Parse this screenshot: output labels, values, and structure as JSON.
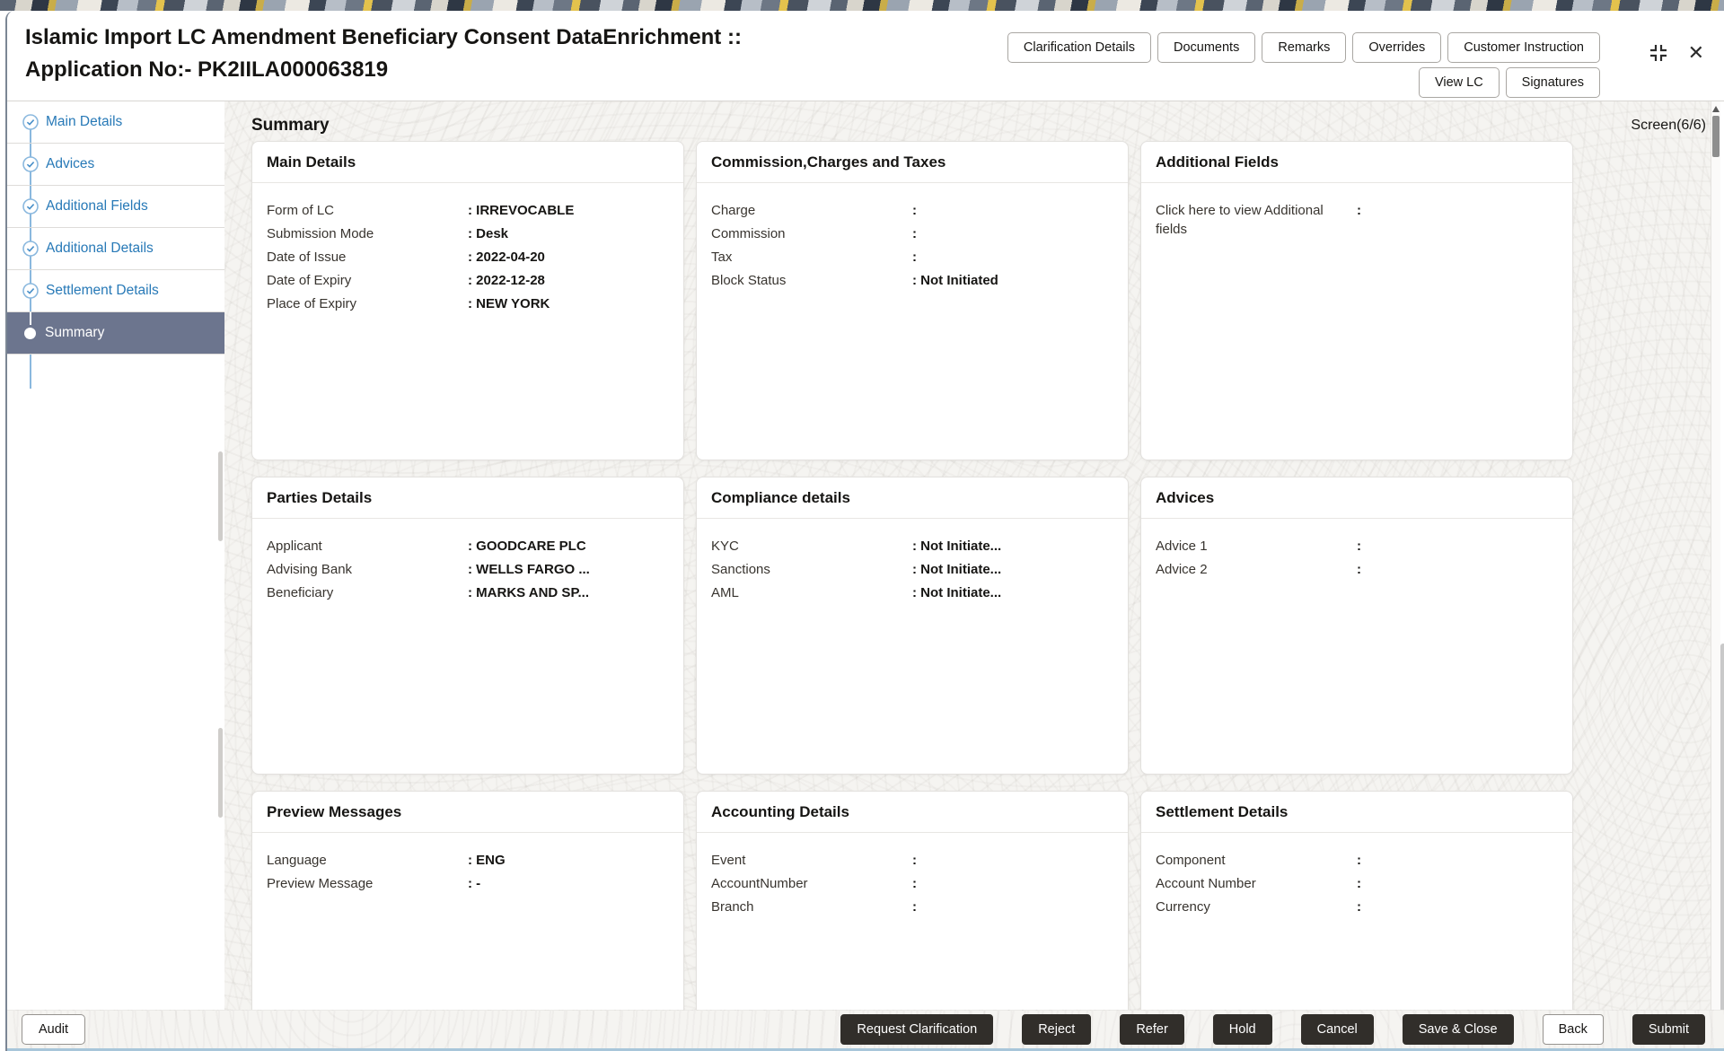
{
  "window": {
    "title": "Islamic Import LC Amendment Beneficiary Consent DataEnrichment :: Application No:- PK2IILA000063819",
    "controls": {
      "collapse_icon": "collapse-corners-icon",
      "close_icon": "close-x-icon"
    }
  },
  "header": {
    "actions_row1": [
      "Clarification Details",
      "Documents",
      "Remarks",
      "Overrides",
      "Customer Instruction"
    ],
    "actions_row2": [
      "View LC",
      "Signatures"
    ]
  },
  "sidebar": {
    "steps": [
      {
        "label": "Main Details",
        "state": "completed",
        "icon": "check-circle-icon"
      },
      {
        "label": "Advices",
        "state": "completed",
        "icon": "check-circle-icon"
      },
      {
        "label": "Additional Fields",
        "state": "completed",
        "icon": "check-circle-icon"
      },
      {
        "label": "Additional Details",
        "state": "completed",
        "icon": "check-circle-icon"
      },
      {
        "label": "Settlement Details",
        "state": "completed",
        "icon": "check-circle-icon"
      },
      {
        "label": "Summary",
        "state": "active",
        "icon": "filled-dot-icon"
      }
    ]
  },
  "main": {
    "title": "Summary",
    "screen_indicator": "Screen(6/6)",
    "cards": [
      {
        "title": "Main Details",
        "row": 1,
        "fields": [
          {
            "label": "Form of LC",
            "value": "IRREVOCABLE"
          },
          {
            "label": "Submission Mode",
            "value": "Desk"
          },
          {
            "label": "Date of Issue",
            "value": "2022-04-20"
          },
          {
            "label": "Date of Expiry",
            "value": "2022-12-28"
          },
          {
            "label": "Place of Expiry",
            "value": "NEW YORK"
          }
        ]
      },
      {
        "title": "Commission,Charges and Taxes",
        "row": 1,
        "fields": [
          {
            "label": "Charge",
            "value": ""
          },
          {
            "label": "Commission",
            "value": ""
          },
          {
            "label": "Tax",
            "value": ""
          },
          {
            "label": "Block Status",
            "value": "Not Initiated"
          }
        ]
      },
      {
        "title": "Additional Fields",
        "row": 1,
        "fields": [
          {
            "label": "Click here to view Additional fields",
            "value": "",
            "clickable": true
          }
        ]
      },
      {
        "title": "Parties Details",
        "row": 2,
        "fields": [
          {
            "label": "Applicant",
            "value": "GOODCARE PLC"
          },
          {
            "label": "Advising Bank",
            "value": "WELLS FARGO ..."
          },
          {
            "label": "Beneficiary",
            "value": "MARKS AND SP..."
          }
        ]
      },
      {
        "title": "Compliance details",
        "row": 2,
        "fields": [
          {
            "label": "KYC",
            "value": "Not Initiate..."
          },
          {
            "label": "Sanctions",
            "value": "Not Initiate..."
          },
          {
            "label": "AML",
            "value": "Not Initiate..."
          }
        ]
      },
      {
        "title": "Advices",
        "row": 2,
        "fields": [
          {
            "label": "Advice 1",
            "value": ""
          },
          {
            "label": "Advice 2",
            "value": ""
          }
        ]
      },
      {
        "title": "Preview Messages",
        "row": 3,
        "fields": [
          {
            "label": "Language",
            "value": "ENG"
          },
          {
            "label": "Preview Message",
            "value": "-"
          }
        ]
      },
      {
        "title": "Accounting Details",
        "row": 3,
        "fields": [
          {
            "label": "Event",
            "value": ""
          },
          {
            "label": "AccountNumber",
            "value": ""
          },
          {
            "label": "Branch",
            "value": ""
          }
        ]
      },
      {
        "title": "Settlement Details",
        "row": 3,
        "fields": [
          {
            "label": "Component",
            "value": ""
          },
          {
            "label": "Account Number",
            "value": ""
          },
          {
            "label": "Currency",
            "value": ""
          }
        ]
      }
    ]
  },
  "footer": {
    "audit_label": "Audit",
    "actions": [
      {
        "label": "Request Clarification",
        "style": "dark"
      },
      {
        "label": "Reject",
        "style": "dark"
      },
      {
        "label": "Refer",
        "style": "dark"
      },
      {
        "label": "Hold",
        "style": "dark"
      },
      {
        "label": "Cancel",
        "style": "dark"
      },
      {
        "label": "Save & Close",
        "style": "dark"
      },
      {
        "label": "Back",
        "style": "light"
      },
      {
        "label": "Submit",
        "style": "dark"
      }
    ]
  },
  "colors": {
    "accent_blue": "#2779b7",
    "step_active_bg": "#6c758e",
    "dark_button": "#312e2a",
    "footer_bottom_line": "#a8c6da",
    "content_bg": "#f5f4f1",
    "value_separator": ":"
  }
}
